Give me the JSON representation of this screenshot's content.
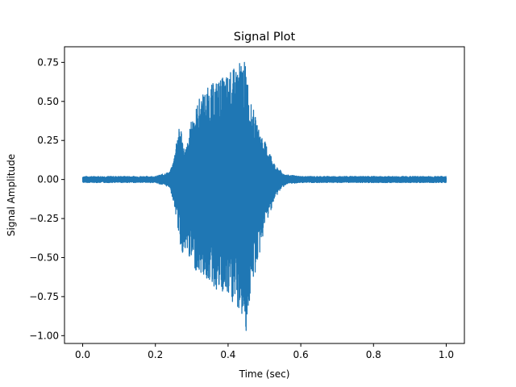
{
  "chart_data": {
    "type": "line",
    "title": "Signal Plot",
    "xlabel": "Time (sec)",
    "ylabel": "Signal Amplitude",
    "xlim": [
      -0.05,
      1.05
    ],
    "ylim": [
      -1.05,
      0.85
    ],
    "xticks": [
      0.0,
      0.2,
      0.4,
      0.6,
      0.8,
      1.0
    ],
    "xtick_labels": [
      "0.0",
      "0.2",
      "0.4",
      "0.6",
      "0.8",
      "1.0"
    ],
    "yticks": [
      0.75,
      0.5,
      0.25,
      0.0,
      -0.25,
      -0.5,
      -0.75,
      -1.0
    ],
    "ytick_labels": [
      "0.75",
      "0.50",
      "0.25",
      "0.00",
      "−0.25",
      "−0.50",
      "−0.75",
      "−1.00"
    ],
    "grid": false,
    "colors": {
      "series": "#1f77b4"
    },
    "series": [
      {
        "x": [
          0.0,
          0.05,
          0.1,
          0.15,
          0.2,
          0.24,
          0.25,
          0.26,
          0.27,
          0.28,
          0.29,
          0.3,
          0.31,
          0.32,
          0.33,
          0.34,
          0.35,
          0.36,
          0.37,
          0.38,
          0.39,
          0.4,
          0.41,
          0.42,
          0.43,
          0.44,
          0.45,
          0.46,
          0.47,
          0.48,
          0.49,
          0.5,
          0.51,
          0.52,
          0.53,
          0.54,
          0.55,
          0.56,
          0.6,
          0.7,
          0.8,
          0.9,
          1.0
        ],
        "y_max": [
          0.02,
          0.02,
          0.02,
          0.02,
          0.02,
          0.05,
          0.12,
          0.3,
          0.35,
          0.18,
          0.25,
          0.4,
          0.45,
          0.52,
          0.55,
          0.58,
          0.6,
          0.62,
          0.64,
          0.65,
          0.66,
          0.68,
          0.7,
          0.72,
          0.75,
          0.77,
          0.74,
          0.5,
          0.45,
          0.35,
          0.3,
          0.25,
          0.2,
          0.15,
          0.08,
          0.07,
          0.04,
          0.03,
          0.02,
          0.02,
          0.02,
          0.02,
          0.02
        ],
        "y_min": [
          -0.02,
          -0.02,
          -0.02,
          -0.02,
          -0.02,
          -0.05,
          -0.15,
          -0.28,
          -0.45,
          -0.5,
          -0.48,
          -0.55,
          -0.58,
          -0.6,
          -0.62,
          -0.65,
          -0.65,
          -0.7,
          -0.72,
          -0.75,
          -0.75,
          -0.78,
          -0.8,
          -0.82,
          -0.85,
          -0.9,
          -0.98,
          -0.78,
          -0.65,
          -0.55,
          -0.45,
          -0.3,
          -0.25,
          -0.18,
          -0.12,
          -0.08,
          -0.05,
          -0.03,
          -0.02,
          -0.02,
          -0.02,
          -0.02,
          -0.02
        ]
      }
    ]
  }
}
